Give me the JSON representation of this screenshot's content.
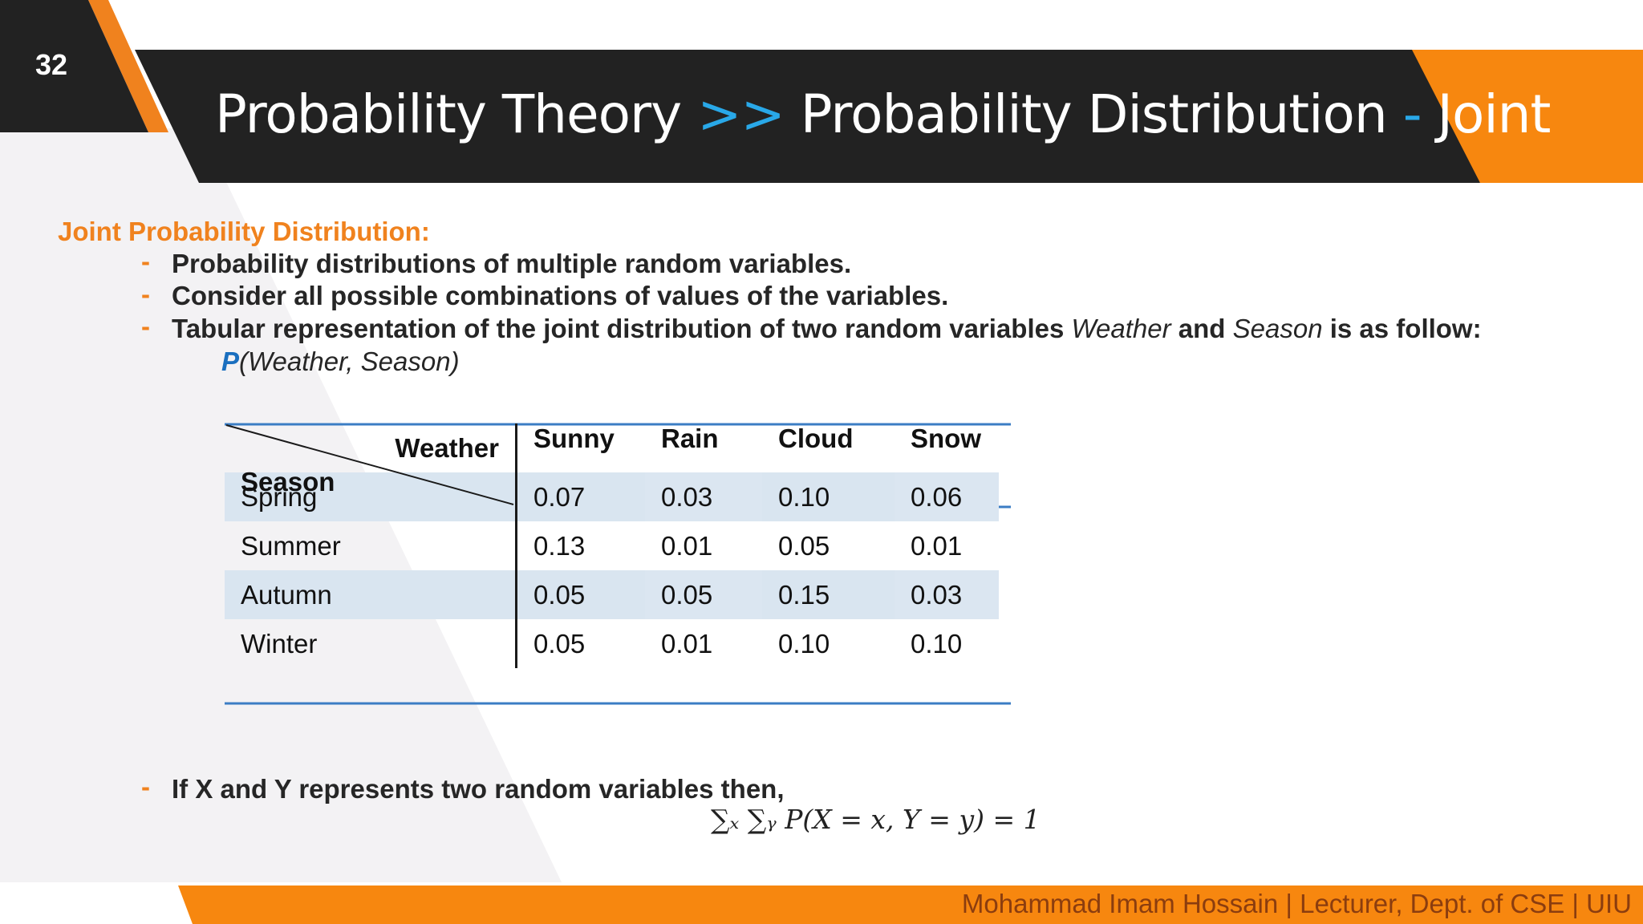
{
  "slide": {
    "number": "32"
  },
  "title": {
    "part1": "Probability Theory",
    "sep1": ">>",
    "part2": "Probability Distribution",
    "sep2": "-",
    "part3": "Joint"
  },
  "section": {
    "heading": "Joint Probability Distribution:",
    "bullets": [
      "Probability distributions of multiple random variables.",
      "Consider all possible combinations of values of the variables."
    ],
    "bullet3": {
      "pre": "Tabular representation of the joint distribution of two random variables ",
      "var1": "Weather",
      "mid": " and ",
      "var2": "Season",
      "post": " is as follow:"
    },
    "bullet_marker": "-",
    "expression": {
      "p": "P",
      "args": "(Weather, Season)"
    }
  },
  "table": {
    "corner_col": "Weather",
    "corner_row": "Season",
    "columns": [
      "Sunny",
      "Rain",
      "Cloud",
      "Snow"
    ],
    "rows": [
      {
        "label": "Spring",
        "values": [
          "0.07",
          "0.03",
          "0.10",
          "0.06"
        ]
      },
      {
        "label": "Summer",
        "values": [
          "0.13",
          "0.01",
          "0.05",
          "0.01"
        ]
      },
      {
        "label": "Autumn",
        "values": [
          "0.05",
          "0.05",
          "0.15",
          "0.03"
        ]
      },
      {
        "label": "Winter",
        "values": [
          "0.05",
          "0.01",
          "0.10",
          "0.10"
        ]
      }
    ]
  },
  "bullet4": "If X and Y represents two random variables then,",
  "formula": "∑ₓ ∑ᵧ P(X = x, Y = y) = 1",
  "footer": "Mohammad Imam Hossain | Lecturer, Dept. of CSE | UIU",
  "colors": {
    "orange": "#f0821e",
    "dark": "#262626",
    "blue": "#29a8e8",
    "table_line": "#3b7dc4"
  }
}
